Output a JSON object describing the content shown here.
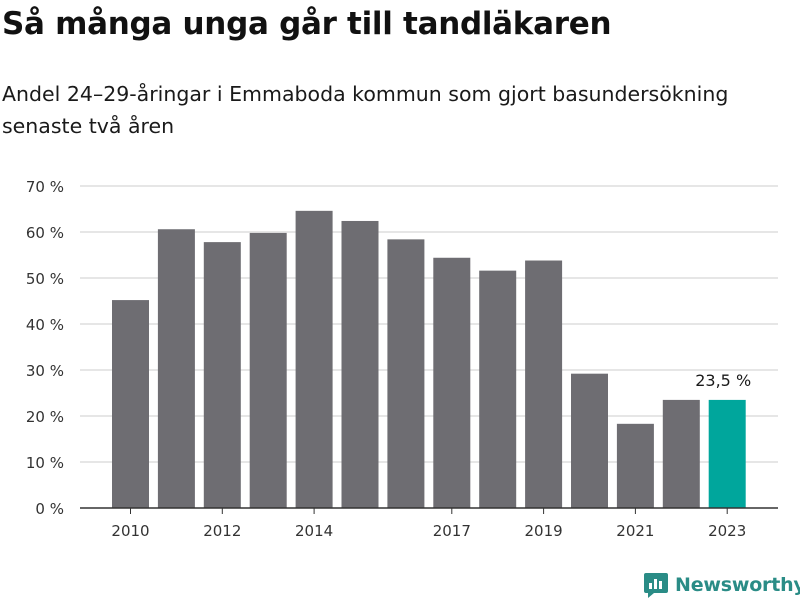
{
  "title": "Så många unga går till tandläkaren",
  "subtitle": "Andel 24–29-åringar i Emmaboda kommun som gjort basundersökning senaste två åren",
  "brand": {
    "name": "Newsworthy",
    "color": "#2a8c86",
    "icon": "newsworthy-logo-icon"
  },
  "chart_data": {
    "type": "bar",
    "categories": [
      "2010",
      "2011",
      "2012",
      "2013",
      "2014",
      "2015",
      "2016",
      "2017",
      "2018",
      "2019",
      "2020",
      "2021",
      "2022",
      "2023"
    ],
    "values": [
      45.2,
      60.6,
      57.8,
      59.8,
      64.6,
      62.4,
      58.4,
      54.4,
      51.6,
      53.8,
      29.2,
      18.3,
      23.5,
      23.5
    ],
    "x_tick_labels": [
      "2010",
      "",
      "2012",
      "",
      "2014",
      "",
      "",
      "2017",
      "",
      "2019",
      "",
      "2021",
      "",
      "2023"
    ],
    "y_ticks": [
      "0 %",
      "10 %",
      "20 %",
      "30 %",
      "40 %",
      "50 %",
      "60 %",
      "70 %"
    ],
    "ylim": [
      0,
      70
    ],
    "grid": true,
    "highlight_index": 13,
    "highlight_label": "23,5 %",
    "colors": {
      "bar": "#6e6d72",
      "highlight": "#00a69c",
      "grid": "#dddddd",
      "axis": "#333333"
    }
  }
}
